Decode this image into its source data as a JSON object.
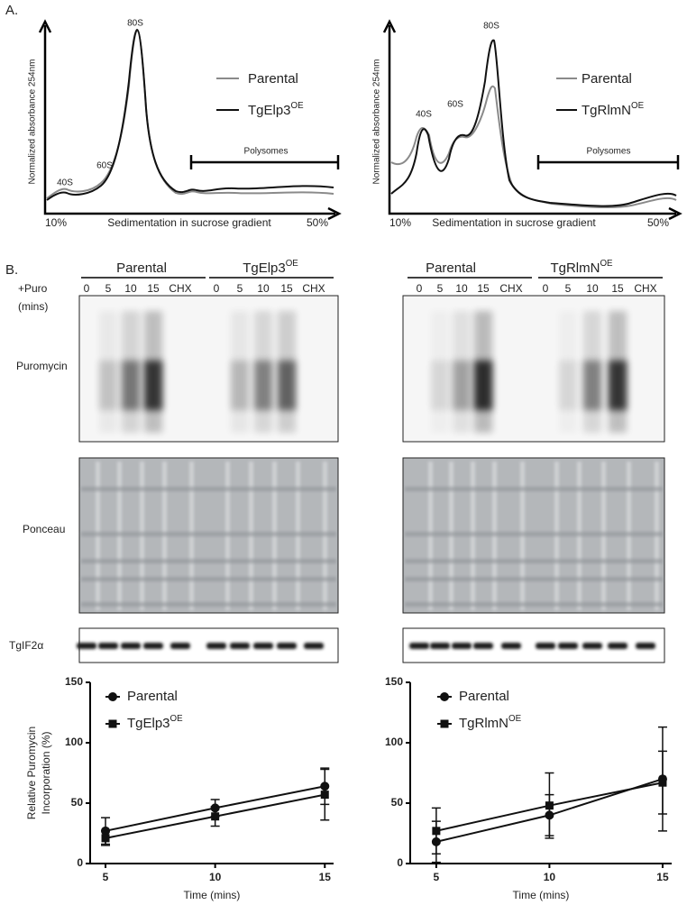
{
  "panel_a": {
    "label": "A.",
    "profiles": [
      {
        "y_label": "Normalized absorbance 254nm",
        "x_label": "Sedimentation in sucrose gradient",
        "x_start": "10%",
        "x_end": "50%",
        "peaks": [
          "40S",
          "60S",
          "80S"
        ],
        "region": "Polysomes",
        "legend": [
          {
            "name": "Parental"
          },
          {
            "name": "TgElp3",
            "superscript": "OE"
          }
        ]
      },
      {
        "y_label": "Normalized absorbance 254nm",
        "x_label": "Sedimentation in sucrose gradient",
        "x_start": "10%",
        "x_end": "50%",
        "peaks": [
          "40S",
          "60S",
          "80S"
        ],
        "region": "Polysomes",
        "legend": [
          {
            "name": "Parental"
          },
          {
            "name": "TgRlmN",
            "superscript": "OE"
          }
        ]
      }
    ]
  },
  "panel_b": {
    "label": "B.",
    "treatment": "+Puro",
    "treatment_unit": "(mins)",
    "blot_labels": [
      "Puromycin",
      "Ponceau",
      "TgIF2α"
    ],
    "blots": [
      {
        "groups": [
          {
            "name": "Parental",
            "lanes": [
              "0",
              "5",
              "10",
              "15",
              "CHX"
            ]
          },
          {
            "name": "TgElp3",
            "superscript": "OE",
            "lanes": [
              "0",
              "5",
              "10",
              "15",
              "CHX"
            ]
          }
        ]
      },
      {
        "groups": [
          {
            "name": "Parental",
            "lanes": [
              "0",
              "5",
              "10",
              "15",
              "CHX"
            ]
          },
          {
            "name": "TgRlmN",
            "superscript": "OE",
            "lanes": [
              "0",
              "5",
              "10",
              "15",
              "CHX"
            ]
          }
        ]
      }
    ]
  },
  "chart_data": [
    {
      "type": "line",
      "y_label": [
        "Relative Puromycin",
        "Incorporation (%)"
      ],
      "x_label": "Time (mins)",
      "x": [
        5,
        10,
        15
      ],
      "xlim": [
        4.3,
        15.4
      ],
      "xticks": [
        5,
        10,
        15
      ],
      "ylim": [
        0,
        150
      ],
      "yticks": [
        0,
        50,
        100,
        150
      ],
      "series": [
        {
          "name": "Parental",
          "marker": "circle",
          "color": "#111111",
          "values": [
            27,
            46,
            64
          ],
          "errors": [
            11,
            7,
            15
          ]
        },
        {
          "name": "TgElp3",
          "superscript": "OE",
          "marker": "square",
          "color": "#111111",
          "values": [
            21,
            39,
            57
          ],
          "errors": [
            6,
            8,
            21
          ]
        }
      ]
    },
    {
      "type": "line",
      "x_label": "Time (mins)",
      "x": [
        5,
        10,
        15
      ],
      "xlim": [
        3.85,
        15.4
      ],
      "xticks": [
        5,
        10,
        15
      ],
      "ylim": [
        0,
        150
      ],
      "yticks": [
        0,
        50,
        100,
        150
      ],
      "series": [
        {
          "name": "Parental",
          "marker": "circle",
          "color": "#111111",
          "values": [
            18,
            40,
            70
          ],
          "errors": [
            17,
            17,
            43
          ]
        },
        {
          "name": "TgRlmN",
          "superscript": "OE",
          "marker": "square",
          "color": "#111111",
          "values": [
            27,
            48,
            67
          ],
          "errors": [
            19,
            27,
            26
          ]
        }
      ]
    }
  ]
}
